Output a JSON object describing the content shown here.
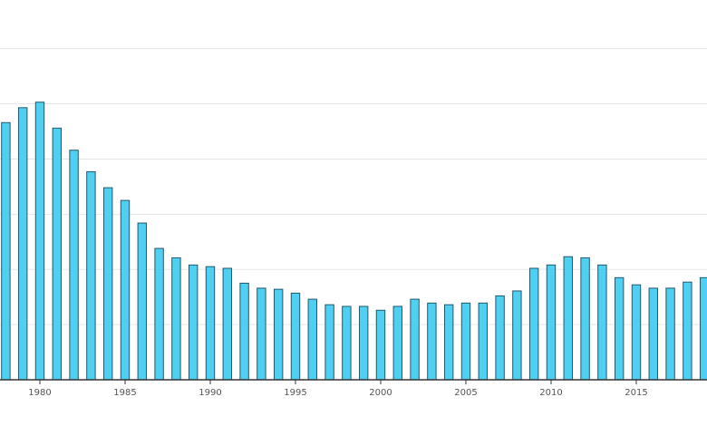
{
  "chart_data": {
    "type": "bar",
    "x": [
      1978,
      1979,
      1980,
      1981,
      1982,
      1983,
      1984,
      1985,
      1986,
      1987,
      1988,
      1989,
      1990,
      1991,
      1992,
      1993,
      1994,
      1995,
      1996,
      1997,
      1998,
      1999,
      2000,
      2001,
      2002,
      2003,
      2004,
      2005,
      2006,
      2007,
      2008,
      2009,
      2010,
      2011,
      2012,
      2013,
      2014,
      2015,
      2016,
      2017,
      2018,
      2019
    ],
    "values": [
      4.66,
      4.93,
      5.03,
      4.56,
      4.16,
      3.77,
      3.48,
      3.25,
      2.84,
      2.38,
      2.21,
      2.08,
      2.05,
      2.02,
      1.75,
      1.66,
      1.64,
      1.57,
      1.46,
      1.36,
      1.33,
      1.33,
      1.26,
      1.33,
      1.46,
      1.39,
      1.36,
      1.39,
      1.39,
      1.52,
      1.61,
      2.02,
      2.08,
      2.23,
      2.21,
      2.08,
      1.85,
      1.72,
      1.66,
      1.66,
      1.77,
      1.85
    ],
    "color": "#4fd0f2",
    "edge_color": "#23586b",
    "xlim": [
      1977.66,
      2019.15
    ],
    "xticks": [
      1980,
      1985,
      1990,
      1995,
      2000,
      2005,
      2010,
      2015
    ],
    "ylim": [
      0,
      6.75
    ],
    "grid_lines": [
      1,
      2,
      3,
      4,
      5,
      6
    ],
    "grid": true
  }
}
